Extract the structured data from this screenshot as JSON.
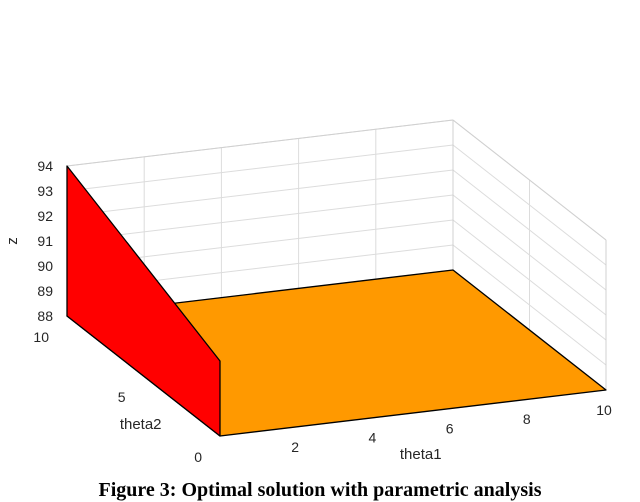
{
  "caption": "Figure 3: Optimal solution with parametric analysis",
  "chart_data": {
    "type": "surface3d",
    "xlabel": "theta1",
    "ylabel": "theta2",
    "zlabel": "z",
    "xlim": [
      0,
      10
    ],
    "ylim": [
      0,
      10
    ],
    "zlim": [
      88,
      94
    ],
    "x_ticks": [
      2,
      4,
      6,
      8,
      10
    ],
    "y_ticks": [
      0,
      5,
      10
    ],
    "z_ticks": [
      88,
      89,
      90,
      91,
      92,
      93,
      94
    ],
    "grid": true,
    "surfaces": [
      {
        "color": "#ff0000",
        "corners": [
          {
            "x": 0,
            "y": 0,
            "z": 88
          },
          {
            "x": 0,
            "y": 10,
            "z": 88
          },
          {
            "x": 0,
            "y": 10,
            "z": 94
          },
          {
            "x": 0,
            "y": 0,
            "z": 91
          }
        ]
      },
      {
        "color": "#ff9900",
        "corners": [
          {
            "x": 0,
            "y": 0,
            "z": 88
          },
          {
            "x": 10,
            "y": 0,
            "z": 88
          },
          {
            "x": 10,
            "y": 10,
            "z": 88
          },
          {
            "x": 0,
            "y": 10,
            "z": 88
          }
        ]
      }
    ]
  }
}
